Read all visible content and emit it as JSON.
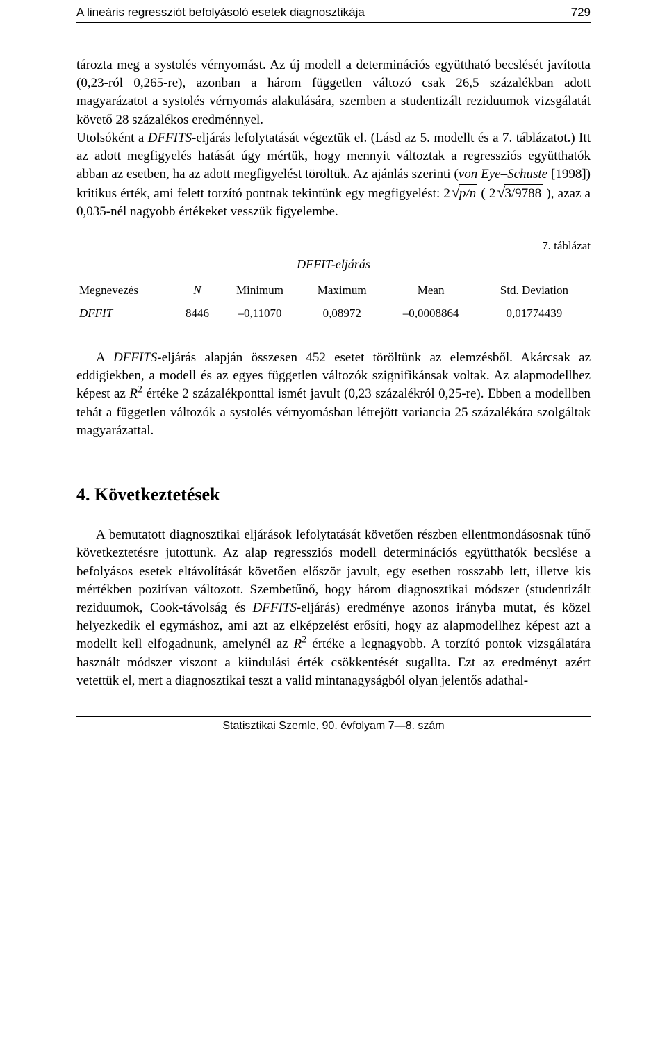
{
  "runningHead": {
    "title": "A lineáris regressziót befolyásoló esetek diagnosztikája",
    "pageNum": "729"
  },
  "paragraphs": {
    "p1_part1": "tározta meg a systolés vérnyomást. Az új modell a determinációs együttható becslését javította (0,23-ról 0,265-re), azonban a három független változó csak 26,5 százalékban adott magyarázatot a systolés vérnyomás alakulására, szemben a studentizált reziduumok vizsgálatát követő 28 százalékos eredménnyel.",
    "p1_dffits_sentence_pre": "Utolsóként a ",
    "p1_dffits_word": "DFFITS",
    "p1_dffits_sentence_post": "-eljárás lefolytatását végeztük el. (Lásd az 5. modellt és a 7. táblázatot.) Itt az adott megfigyelés hatását úgy mértük, hogy mennyit változtak a regressziós együtthatók abban az esetben, ha az adott megfigyelést töröltük. Az ajánlás szerinti (",
    "p1_ref": "von Eye–Schuste",
    "p1_after_ref": " [1998]) kritikus érték, ami felett torzító pontnak tekintünk egy megfigyelést: ",
    "p1_formula_lead": "2",
    "p1_formula_rad1": "p/n",
    "p1_formula_mid": "  ( 2",
    "p1_formula_rad2": "3/9788",
    "p1_formula_tail": " ), azaz a 0,035-nél nagyobb értékeket vesszük figyelembe.",
    "p2_pre": "A ",
    "p2_dffits": "DFFITS",
    "p2_mid": "-eljárás alapján összesen 452 esetet töröltünk az elemzésből. Akárcsak az eddigiekben, a modell és az egyes független változók szignifikánsak voltak. Az alapmodellhez képest az ",
    "p2_r": "R",
    "p2_after_r": " értéke 2 százalékponttal ismét javult (0,23 százalékról 0,25-re). Ebben a modellben tehát a független változók a systolés vérnyomásban létrejött variancia 25 százalékára szolgáltak magyarázattal.",
    "p3_part1": "A bemutatott diagnosztikai eljárások lefolytatását követően részben ellentmondásosnak tűnő következtetésre jutottunk. Az alap regressziós modell determinációs együtthatók becslése a befolyásos esetek eltávolítását követően először javult, egy esetben rosszabb lett, illetve kis mértékben pozitívan változott. Szembetűnő, hogy három diagnosztikai módszer (studentizált reziduumok, Cook-távolság és ",
    "p3_dffits": "DFFITS",
    "p3_part2": "-eljárás) eredménye azonos irányba mutat, és közel helyezkedik el egymáshoz, ami azt az elképzelést erősíti, hogy az alapmodellhez képest azt a modellt kell elfogadnunk, amelynél az ",
    "p3_r": "R",
    "p3_part3": " értéke a legnagyobb. A torzító pontok vizsgálatára használt módszer viszont a kiindulási érték csökkentését sugallta. Ezt az eredményt azért vetettük el, mert a diagnosztikai teszt a valid mintanagyságból olyan jelentős adathal-"
  },
  "table7": {
    "captionRight": "7. táblázat",
    "title": "DFFIT-eljárás",
    "columns": [
      "Megnevezés",
      "N",
      "Minimum",
      "Maximum",
      "Mean",
      "Std. Deviation"
    ],
    "rowLabel": "DFFIT",
    "row": [
      "8446",
      "–0,11070",
      "0,08972",
      "–0,0008864",
      "0,01774439"
    ]
  },
  "sectionHeading": "4. Következtetések",
  "footer": "Statisztikai Szemle, 90. évfolyam 7—8. szám"
}
